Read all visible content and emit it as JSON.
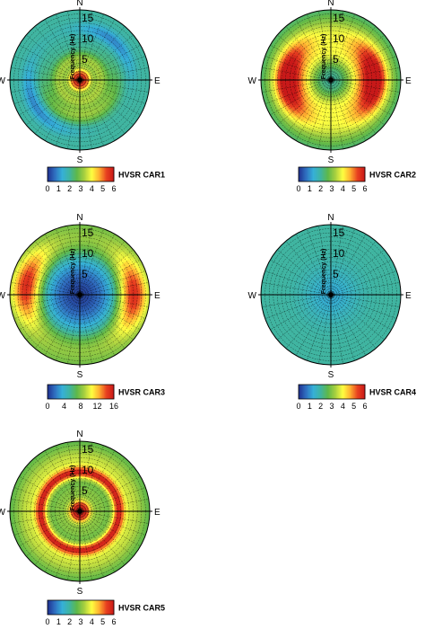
{
  "colormap": [
    "#1f2f8f",
    "#2f6fc0",
    "#35b0d8",
    "#3fb4a0",
    "#5fb848",
    "#a8d040",
    "#ffff40",
    "#ffb030",
    "#e84020",
    "#c81818"
  ],
  "directions": {
    "north": "N",
    "south": "S",
    "east": "E",
    "west": "W"
  },
  "chart_data": [
    {
      "type": "heatmap",
      "projection": "polar",
      "title": "HVSR CAR1",
      "colorbar_ticks": [
        "0",
        "1",
        "2",
        "3",
        "4",
        "5",
        "6"
      ],
      "color_range": [
        0,
        6
      ],
      "radial_label": "Frequency (Hz)",
      "radial_ticks": [
        "5",
        "10",
        "15"
      ],
      "r_range": [
        0,
        17
      ],
      "background_value": 2.0,
      "features": [
        {
          "r": 1.2,
          "width": 1.2,
          "value": 5.5,
          "az_center": 0,
          "az_spread": 360
        },
        {
          "r": 5,
          "width": 1.3,
          "value": 3.3,
          "az_center": 0,
          "az_spread": 360
        },
        {
          "r": 8.5,
          "width": 1.5,
          "value": 3.2,
          "az_center": 170,
          "az_spread": 120
        },
        {
          "r": 12.5,
          "width": 1.2,
          "value": 0.9,
          "az_center": 40,
          "az_spread": 60
        },
        {
          "r": 12.5,
          "width": 1.2,
          "value": 0.9,
          "az_center": 240,
          "az_spread": 70
        }
      ]
    },
    {
      "type": "heatmap",
      "projection": "polar",
      "title": "HVSR CAR2",
      "colorbar_ticks": [
        "0",
        "1",
        "2",
        "3",
        "4",
        "5",
        "6"
      ],
      "color_range": [
        0,
        6
      ],
      "radial_label": "Frequency (Hz)",
      "radial_ticks": [
        "5",
        "10",
        "15"
      ],
      "r_range": [
        0,
        17
      ],
      "background_value": 2.0,
      "features": [
        {
          "r": 10.5,
          "width": 2.2,
          "value": 5.2,
          "az_center": 90,
          "az_spread": 70
        },
        {
          "r": 10.5,
          "width": 2.2,
          "value": 5.2,
          "az_center": 270,
          "az_spread": 70
        },
        {
          "r": 11,
          "width": 3.5,
          "value": 3.6,
          "az_center": 0,
          "az_spread": 360
        },
        {
          "r": 6,
          "width": 2.0,
          "value": 3.2,
          "az_center": 0,
          "az_spread": 360
        }
      ]
    },
    {
      "type": "heatmap",
      "projection": "polar",
      "title": "HVSR CAR3",
      "colorbar_ticks": [
        "0",
        "4",
        "8",
        "12",
        "16"
      ],
      "color_range": [
        0,
        16
      ],
      "radial_label": "Frequency (Hz)",
      "radial_ticks": [
        "5",
        "10",
        "15"
      ],
      "r_range": [
        0,
        17
      ],
      "background_value": 7.0,
      "features": [
        {
          "r": 0,
          "width": 7.5,
          "value": 0.5,
          "az_center": 0,
          "az_spread": 360
        },
        {
          "r": 13,
          "width": 2.5,
          "value": 14,
          "az_center": 90,
          "az_spread": 55
        },
        {
          "r": 13,
          "width": 2.5,
          "value": 14,
          "az_center": 280,
          "az_spread": 55
        },
        {
          "r": 13,
          "width": 3.0,
          "value": 9.5,
          "az_center": 0,
          "az_spread": 360
        }
      ]
    },
    {
      "type": "heatmap",
      "projection": "polar",
      "title": "HVSR CAR4",
      "colorbar_ticks": [
        "0",
        "1",
        "2",
        "3",
        "4",
        "5",
        "6"
      ],
      "color_range": [
        0,
        6
      ],
      "radial_label": "Frequency (Hz)",
      "radial_ticks": [
        "5",
        "10",
        "15"
      ],
      "r_range": [
        0,
        17
      ],
      "background_value": 2.0,
      "features": [
        {
          "r": 0,
          "width": 4.5,
          "value": 1.3,
          "az_center": 0,
          "az_spread": 360
        }
      ]
    },
    {
      "type": "heatmap",
      "projection": "polar",
      "title": "HVSR CAR5",
      "colorbar_ticks": [
        "0",
        "1",
        "2",
        "3",
        "4",
        "5",
        "6"
      ],
      "color_range": [
        0,
        6
      ],
      "radial_label": "Frequency (Hz)",
      "radial_ticks": [
        "5",
        "10",
        "15"
      ],
      "r_range": [
        0,
        17
      ],
      "background_value": 2.4,
      "features": [
        {
          "r": 1.2,
          "width": 1.2,
          "value": 5.8,
          "az_center": 0,
          "az_spread": 360
        },
        {
          "r": 9.5,
          "width": 1.0,
          "value": 5.3,
          "az_center": 0,
          "az_spread": 360
        },
        {
          "r": 12.5,
          "width": 2.5,
          "value": 3.6,
          "az_center": 0,
          "az_spread": 360
        },
        {
          "r": 5,
          "width": 1.5,
          "value": 3.0,
          "az_center": 0,
          "az_spread": 360
        }
      ]
    }
  ]
}
